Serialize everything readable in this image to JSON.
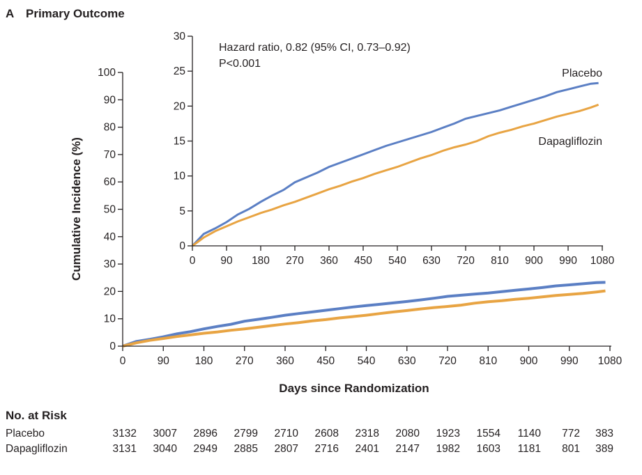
{
  "panel_label": "A",
  "panel_title": "Primary Outcome",
  "colors": {
    "placebo": "#5b7fc4",
    "dapagliflozin": "#e8a443",
    "text": "#231f20"
  },
  "chart_data": [
    {
      "type": "line",
      "name": "main",
      "title": "Primary Outcome",
      "xlabel": "Days since Randomization",
      "ylabel": "Cumulative Incidence (%)",
      "xlim": [
        0,
        1080
      ],
      "ylim": [
        0,
        100
      ],
      "xticks": [
        0,
        90,
        180,
        270,
        360,
        450,
        540,
        630,
        720,
        810,
        900,
        990,
        1080
      ],
      "yticks": [
        0,
        10,
        20,
        30,
        40,
        50,
        60,
        70,
        80,
        90,
        100
      ],
      "series": [
        {
          "name": "Placebo",
          "color": "#5b7fc4",
          "x": [
            0,
            30,
            60,
            90,
            120,
            150,
            180,
            210,
            240,
            270,
            300,
            330,
            360,
            390,
            420,
            450,
            480,
            510,
            540,
            570,
            600,
            630,
            660,
            690,
            720,
            750,
            780,
            810,
            840,
            870,
            900,
            930,
            960,
            990,
            1020,
            1050,
            1070
          ],
          "y": [
            0,
            1.7,
            2.5,
            3.4,
            4.5,
            5.3,
            6.3,
            7.2,
            8.0,
            9.1,
            9.8,
            10.5,
            11.3,
            11.9,
            12.5,
            13.1,
            13.7,
            14.3,
            14.8,
            15.3,
            15.8,
            16.3,
            16.9,
            17.5,
            18.2,
            18.6,
            19.0,
            19.4,
            19.9,
            20.4,
            20.9,
            21.4,
            22.0,
            22.4,
            22.8,
            23.2,
            23.3
          ]
        },
        {
          "name": "Dapagliflozin",
          "color": "#e8a443",
          "x": [
            0,
            30,
            60,
            90,
            120,
            150,
            180,
            210,
            240,
            270,
            300,
            330,
            360,
            390,
            420,
            450,
            480,
            510,
            540,
            570,
            600,
            630,
            660,
            690,
            720,
            750,
            780,
            810,
            840,
            870,
            900,
            930,
            960,
            990,
            1020,
            1050,
            1070
          ],
          "y": [
            0,
            1.2,
            2.1,
            2.8,
            3.5,
            4.1,
            4.7,
            5.2,
            5.8,
            6.3,
            6.9,
            7.5,
            8.1,
            8.6,
            9.2,
            9.7,
            10.3,
            10.8,
            11.3,
            11.9,
            12.5,
            13.0,
            13.6,
            14.1,
            14.5,
            15.0,
            15.7,
            16.2,
            16.6,
            17.1,
            17.5,
            18.0,
            18.5,
            18.9,
            19.3,
            19.8,
            20.2
          ]
        }
      ]
    },
    {
      "type": "line",
      "name": "inset",
      "xlim": [
        0,
        1080
      ],
      "ylim": [
        0,
        30
      ],
      "xticks": [
        0,
        90,
        180,
        270,
        360,
        450,
        540,
        630,
        720,
        810,
        900,
        990,
        1080
      ],
      "yticks": [
        0,
        5,
        10,
        15,
        20,
        25,
        30
      ],
      "annotations": [
        "Hazard ratio, 0.82 (95% CI, 0.73–0.92)",
        "P<0.001"
      ],
      "series_labels": [
        "Placebo",
        "Dapagliflozin"
      ],
      "series": "same as main"
    }
  ],
  "risk_table": {
    "title": "No. at Risk",
    "rows": [
      {
        "label": "Placebo",
        "values": [
          "3132",
          "3007",
          "2896",
          "2799",
          "2710",
          "2608",
          "2318",
          "2080",
          "1923",
          "1554",
          "1140",
          "772",
          "383"
        ]
      },
      {
        "label": "Dapagliflozin",
        "values": [
          "3131",
          "3040",
          "2949",
          "2885",
          "2807",
          "2716",
          "2401",
          "2147",
          "1982",
          "1603",
          "1181",
          "801",
          "389"
        ]
      }
    ]
  }
}
